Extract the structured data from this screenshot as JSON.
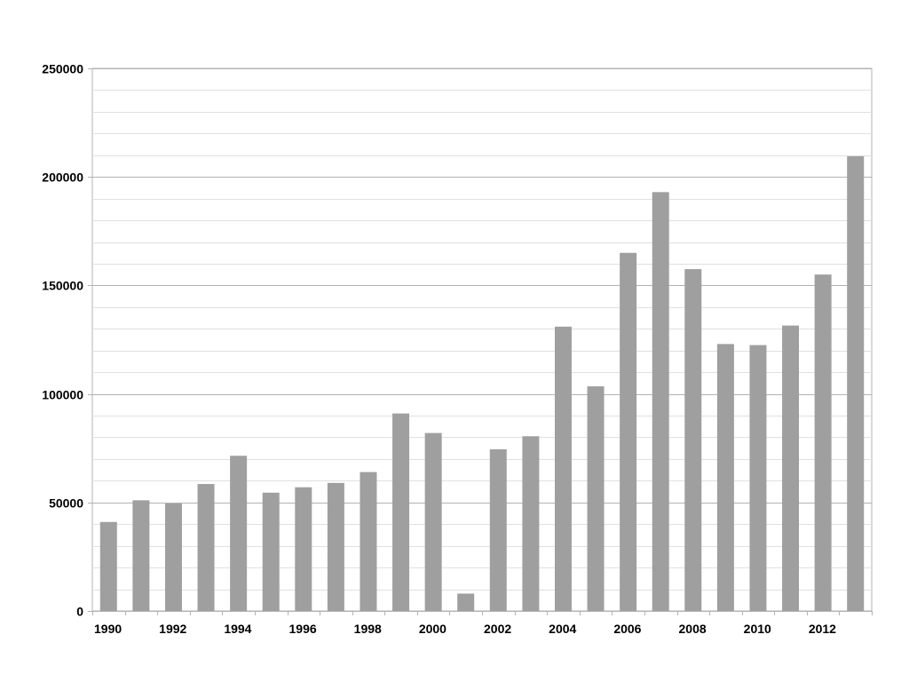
{
  "chart_data": {
    "type": "bar",
    "title": "",
    "xlabel": "",
    "ylabel": "",
    "categories": [
      "1990",
      "1991",
      "1992",
      "1993",
      "1994",
      "1995",
      "1996",
      "1997",
      "1998",
      "1999",
      "2000",
      "2001",
      "2002",
      "2003",
      "2004",
      "2005",
      "2006",
      "2007",
      "2008",
      "2009",
      "2010",
      "2011",
      "2012",
      "2013"
    ],
    "x_tick_labels": [
      "1990",
      "1992",
      "1994",
      "1996",
      "1998",
      "2000",
      "2002",
      "2004",
      "2006",
      "2008",
      "2010",
      "2012"
    ],
    "series": [
      {
        "values": [
          41000,
          51000,
          49500,
          58500,
          71500,
          54500,
          57000,
          59000,
          64000,
          91000,
          82000,
          8000,
          74500,
          80500,
          131000,
          103500,
          165000,
          193000,
          157500,
          123000,
          122500,
          131500,
          155000,
          209500
        ]
      }
    ],
    "y_ticks": [
      "0",
      "50000",
      "100000",
      "150000",
      "200000",
      "250000"
    ],
    "ylim": [
      0,
      250000
    ],
    "grid": true,
    "legend": "none",
    "colors": {
      "bar": "#a09fa0",
      "major_grid": "#b3b3b3",
      "minor_grid": "#e0e0e0",
      "axis": "#b3b3b3"
    }
  }
}
